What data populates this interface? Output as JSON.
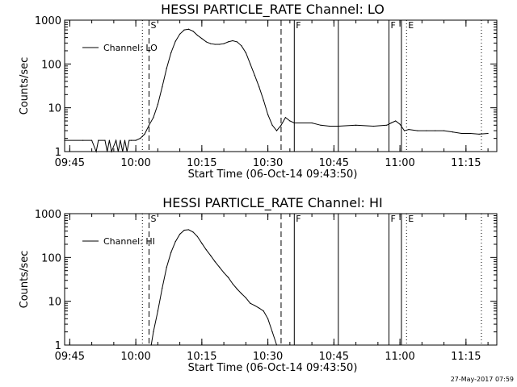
{
  "footer": "27-May-2017 07:59",
  "chart_data": [
    {
      "type": "line",
      "title": "HESSI PARTICLE_RATE Channel: LO",
      "xlabel": "Start Time (06-Oct-14 09:43:50)",
      "ylabel": "Counts/sec",
      "yscale": "log",
      "ylim": [
        1,
        1000
      ],
      "xlim": [
        "09:43:50",
        "11:22:00"
      ],
      "x_ticks": [
        "09:45",
        "10:00",
        "10:15",
        "10:30",
        "10:45",
        "11:00",
        "11:15"
      ],
      "y_ticks": [
        "1",
        "10",
        "100",
        "1000"
      ],
      "legend": "Channel: LO",
      "legend_position": "upper-left",
      "markers": [
        {
          "time": "10:01:30",
          "style": "dotted",
          "label": ""
        },
        {
          "time": "10:03:00",
          "style": "dashed",
          "label": "S"
        },
        {
          "time": "10:33:00",
          "style": "dashed",
          "label": ""
        },
        {
          "time": "10:36:00",
          "style": "solid",
          "label": "F"
        },
        {
          "time": "10:46:00",
          "style": "solid",
          "label": ""
        },
        {
          "time": "10:57:30",
          "style": "solid",
          "label": "F"
        },
        {
          "time": "11:00:20",
          "style": "solid",
          "label": ""
        },
        {
          "time": "11:01:30",
          "style": "dotted",
          "label": "E"
        },
        {
          "time": "11:18:30",
          "style": "dotted",
          "label": ""
        }
      ],
      "series": [
        {
          "name": "Channel: LO",
          "x": [
            "09:43:50",
            "09:48:00",
            "09:50:00",
            "09:51:00",
            "09:51:30",
            "09:53:00",
            "09:53:30",
            "09:54:00",
            "09:54:30",
            "09:55:30",
            "09:56:00",
            "09:56:30",
            "09:57:00",
            "09:57:30",
            "09:58:00",
            "09:58:30",
            "09:59:00",
            "10:00:00",
            "10:01:00",
            "10:02:00",
            "10:03:00",
            "10:04:00",
            "10:05:00",
            "10:06:00",
            "10:07:00",
            "10:08:00",
            "10:09:00",
            "10:10:00",
            "10:11:00",
            "10:12:00",
            "10:13:00",
            "10:14:00",
            "10:15:00",
            "10:16:00",
            "10:17:00",
            "10:18:00",
            "10:19:00",
            "10:20:00",
            "10:21:00",
            "10:22:00",
            "10:23:00",
            "10:24:00",
            "10:25:00",
            "10:26:00",
            "10:27:00",
            "10:28:00",
            "10:29:00",
            "10:30:00",
            "10:31:00",
            "10:32:00",
            "10:33:00",
            "10:34:00",
            "10:35:00",
            "10:36:00",
            "10:40:00",
            "10:42:00",
            "10:44:00",
            "10:46:00",
            "10:50:00",
            "10:54:00",
            "10:57:00",
            "10:58:00",
            "10:59:00",
            "11:00:00",
            "11:01:00",
            "11:02:00",
            "11:04:00",
            "11:06:00",
            "11:08:00",
            "11:10:00",
            "11:12:00",
            "11:14:00",
            "11:16:00",
            "11:18:00",
            "11:20:00"
          ],
          "y": [
            1.8,
            1.8,
            1.8,
            1,
            1.8,
            1.8,
            1,
            1.8,
            1,
            1.8,
            1,
            1.8,
            1,
            1.8,
            1,
            1.8,
            1.8,
            1.8,
            2,
            2.5,
            4,
            6,
            12,
            30,
            80,
            180,
            330,
            480,
            600,
            620,
            560,
            450,
            380,
            320,
            290,
            280,
            280,
            290,
            320,
            340,
            320,
            260,
            180,
            100,
            55,
            30,
            15,
            7,
            4,
            3,
            4,
            6,
            5,
            4.5,
            4.5,
            4,
            3.8,
            3.8,
            4,
            3.8,
            4,
            4.5,
            5,
            4.2,
            3,
            3.2,
            3,
            3,
            3,
            3,
            2.8,
            2.6,
            2.6,
            2.5,
            2.6
          ]
        }
      ]
    },
    {
      "type": "line",
      "title": "HESSI PARTICLE_RATE Channel: HI",
      "xlabel": "Start Time (06-Oct-14 09:43:50)",
      "ylabel": "Counts/sec",
      "yscale": "log",
      "ylim": [
        1,
        1000
      ],
      "xlim": [
        "09:43:50",
        "11:22:00"
      ],
      "x_ticks": [
        "09:45",
        "10:00",
        "10:15",
        "10:30",
        "10:45",
        "11:00",
        "11:15"
      ],
      "y_ticks": [
        "1",
        "10",
        "100",
        "1000"
      ],
      "legend": "Channel: HI",
      "legend_position": "upper-left",
      "markers": [
        {
          "time": "10:01:30",
          "style": "dotted",
          "label": ""
        },
        {
          "time": "10:03:00",
          "style": "dashed",
          "label": "S"
        },
        {
          "time": "10:33:00",
          "style": "dashed",
          "label": ""
        },
        {
          "time": "10:36:00",
          "style": "solid",
          "label": "F"
        },
        {
          "time": "10:46:00",
          "style": "solid",
          "label": ""
        },
        {
          "time": "10:57:30",
          "style": "solid",
          "label": "F"
        },
        {
          "time": "11:00:20",
          "style": "solid",
          "label": ""
        },
        {
          "time": "11:01:30",
          "style": "dotted",
          "label": "E"
        },
        {
          "time": "11:18:30",
          "style": "dotted",
          "label": ""
        }
      ],
      "series": [
        {
          "name": "Channel: HI",
          "x": [
            "10:03:30",
            "10:04:00",
            "10:05:00",
            "10:06:00",
            "10:07:00",
            "10:08:00",
            "10:09:00",
            "10:10:00",
            "10:11:00",
            "10:12:00",
            "10:13:00",
            "10:14:00",
            "10:15:00",
            "10:16:00",
            "10:17:00",
            "10:18:00",
            "10:19:00",
            "10:20:00",
            "10:21:00",
            "10:22:00",
            "10:23:00",
            "10:24:00",
            "10:25:00",
            "10:26:00",
            "10:27:00",
            "10:28:00",
            "10:29:00",
            "10:30:00",
            "10:31:00",
            "10:32:00"
          ],
          "y": [
            1,
            2,
            6,
            20,
            60,
            130,
            230,
            340,
            420,
            430,
            380,
            300,
            210,
            150,
            110,
            80,
            60,
            45,
            35,
            25,
            19,
            15,
            12,
            9,
            8,
            7,
            6,
            4,
            2,
            1
          ]
        }
      ]
    }
  ]
}
